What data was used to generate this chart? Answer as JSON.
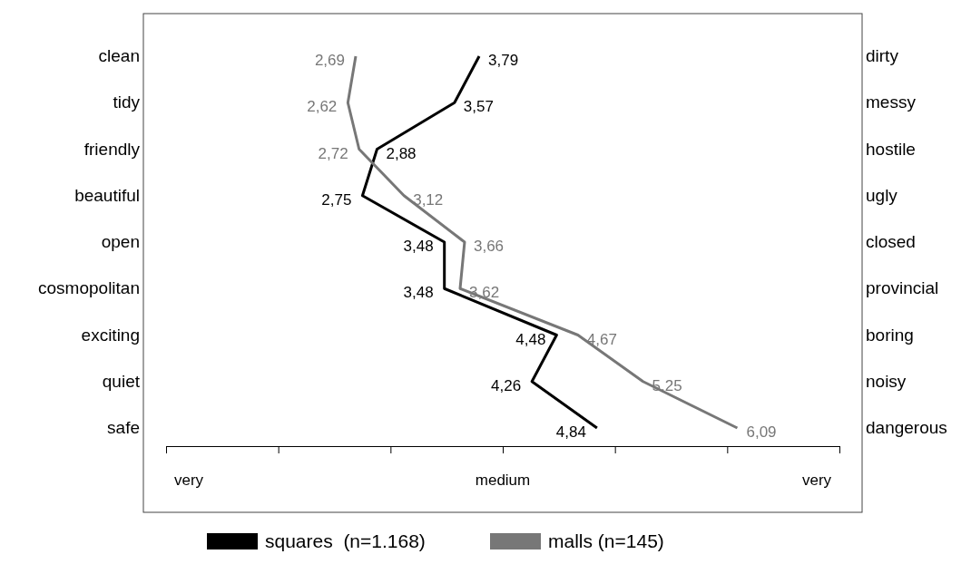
{
  "chart_data": {
    "type": "line",
    "orientation": "horizontal",
    "categories": [
      "clean",
      "tidy",
      "friendly",
      "beautiful",
      "open",
      "cosmopolitan",
      "exciting",
      "quiet",
      "safe"
    ],
    "y2_categories": [
      "dirty",
      "messy",
      "hostile",
      "ugly",
      "closed",
      "provincial",
      "boring",
      "noisy",
      "dangerous"
    ],
    "xlim": [
      1,
      7
    ],
    "annotations": [
      "very",
      "medium",
      "very"
    ],
    "series": [
      {
        "name": "squares  (n=1.168)",
        "color": "#000000",
        "values": [
          3.79,
          3.57,
          2.88,
          2.75,
          3.48,
          3.48,
          4.48,
          4.26,
          4.84
        ],
        "value_labels": [
          "3,79",
          "3,57",
          "2,88",
          "2,75",
          "3,48",
          "3,48",
          "4,48",
          "4,26",
          "4,84"
        ]
      },
      {
        "name": "malls (n=145)",
        "color": "#777777",
        "values": [
          2.69,
          2.62,
          2.72,
          3.12,
          3.66,
          3.62,
          4.67,
          5.25,
          6.09
        ],
        "value_labels": [
          "2,69",
          "2,62",
          "2,72",
          "3,12",
          "3,66",
          "3,62",
          "4,67",
          "5,25",
          "6,09"
        ]
      }
    ],
    "legend": "bottom",
    "grid": false,
    "marker": "none",
    "line_style": "solid"
  }
}
